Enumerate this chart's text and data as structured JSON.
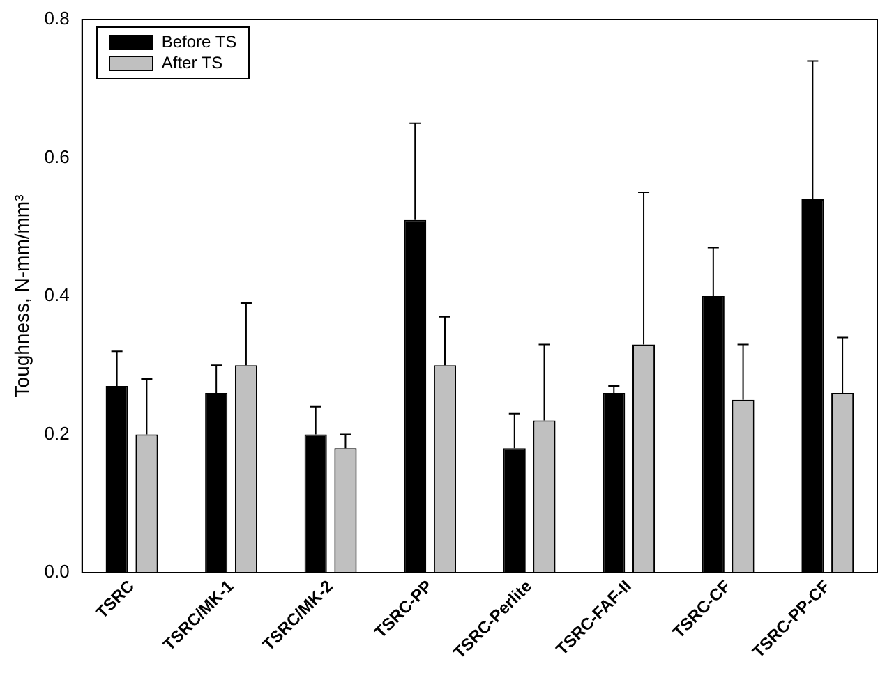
{
  "chart_data": {
    "type": "bar",
    "ylabel": "Toughness, N-mm/mm³",
    "categories": [
      "TSRC",
      "TSRC/MK-1",
      "TSRC/MK-2",
      "TSRC-PP",
      "TSRC-Perlite",
      "TSRC-FAF-II",
      "TSRC-CF",
      "TSRC-PP-CF"
    ],
    "series": [
      {
        "name": "Before TS",
        "color": "#000000",
        "values": [
          0.27,
          0.26,
          0.2,
          0.51,
          0.18,
          0.26,
          0.4,
          0.54
        ],
        "errors": [
          [
            0.27,
            0.32
          ],
          [
            0.26,
            0.3
          ],
          [
            0.2,
            0.24
          ],
          [
            0.51,
            0.65
          ],
          [
            0.18,
            0.23
          ],
          [
            0.26,
            0.27
          ],
          [
            0.4,
            0.47
          ],
          [
            0.54,
            0.74
          ]
        ]
      },
      {
        "name": "After TS",
        "color": "#c0c0c0",
        "values": [
          0.2,
          0.3,
          0.18,
          0.3,
          0.22,
          0.33,
          0.25,
          0.26
        ],
        "errors": [
          [
            0.2,
            0.28
          ],
          [
            0.3,
            0.39
          ],
          [
            0.18,
            0.2
          ],
          [
            0.3,
            0.37
          ],
          [
            0.22,
            0.33
          ],
          [
            0.33,
            0.55
          ],
          [
            0.25,
            0.33
          ],
          [
            0.26,
            0.34
          ]
        ]
      }
    ],
    "ylim": [
      0,
      0.8
    ],
    "yticks": [
      {
        "value": 0,
        "label": "0.0"
      },
      0.2,
      0.4,
      0.6,
      0.8
    ],
    "grid": false,
    "legend": "top left"
  }
}
